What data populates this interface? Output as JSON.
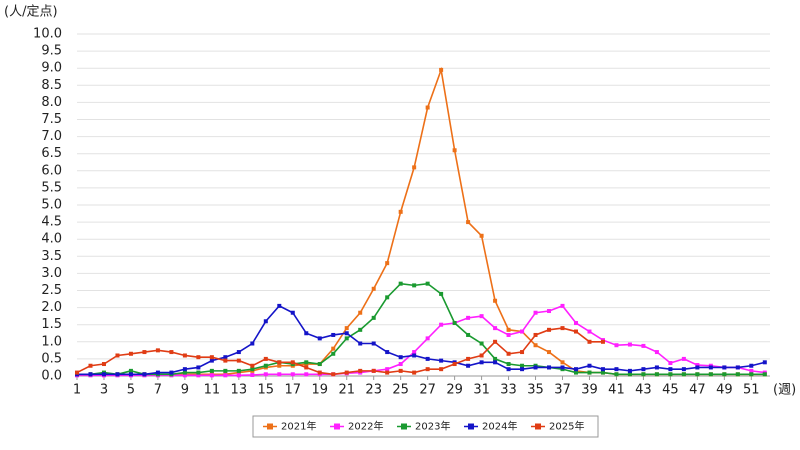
{
  "chart_data": {
    "type": "line",
    "y_label": "(人/定点)",
    "x_label": "(週)",
    "x": [
      1,
      2,
      3,
      4,
      5,
      6,
      7,
      8,
      9,
      10,
      11,
      12,
      13,
      14,
      15,
      16,
      17,
      18,
      19,
      20,
      21,
      22,
      23,
      24,
      25,
      26,
      27,
      28,
      29,
      30,
      31,
      32,
      33,
      34,
      35,
      36,
      37,
      38,
      39,
      40,
      41,
      42,
      43,
      44,
      45,
      46,
      47,
      48,
      49,
      50,
      51,
      52
    ],
    "xlim": [
      1,
      52
    ],
    "xticks": [
      1,
      3,
      5,
      7,
      9,
      11,
      13,
      15,
      17,
      19,
      21,
      23,
      25,
      27,
      29,
      31,
      33,
      35,
      37,
      39,
      41,
      43,
      45,
      47,
      49,
      51
    ],
    "ylim": [
      0,
      10
    ],
    "yticks": [
      {
        "value": 0,
        "label": "0.0"
      },
      0.5,
      {
        "value": 1,
        "label": "1.0"
      },
      1.5,
      {
        "value": 2,
        "label": "2.0"
      },
      2.5,
      {
        "value": 3,
        "label": "3.0"
      },
      3.5,
      {
        "value": 4,
        "label": "4.0"
      },
      4.5,
      {
        "value": 5,
        "label": "5.0"
      },
      5.5,
      {
        "value": 6,
        "label": "6.0"
      },
      6.5,
      {
        "value": 7,
        "label": "7.0"
      },
      7.5,
      {
        "value": 8,
        "label": "8.0"
      },
      8.5,
      {
        "value": 9,
        "label": "9.0"
      },
      9.5,
      {
        "value": 10,
        "label": "10.0"
      }
    ],
    "grid": true,
    "legend": "bottom",
    "series": [
      {
        "name": "2021年",
        "color": "#ed7018",
        "values": [
          0.05,
          0.05,
          0.05,
          0.05,
          0.05,
          0.05,
          0.05,
          0.05,
          0.05,
          0.05,
          0.05,
          0.05,
          0.1,
          0.15,
          0.25,
          0.3,
          0.3,
          0.35,
          0.35,
          0.8,
          1.4,
          1.85,
          2.55,
          3.3,
          4.8,
          6.1,
          7.85,
          8.95,
          6.6,
          4.5,
          4.1,
          2.2,
          1.35,
          1.3,
          0.9,
          0.7,
          0.4,
          0.15,
          0.1,
          0.1,
          0.05,
          0.05,
          0.05,
          0.05,
          0.05,
          0.05,
          0.05,
          0.05,
          0.05,
          0.05,
          0.05,
          0.05
        ]
      },
      {
        "name": "2022年",
        "color": "#ff20ff",
        "values": [
          0.02,
          0.02,
          0.02,
          0.02,
          0.02,
          0.02,
          0.02,
          0.02,
          0.02,
          0.02,
          0.02,
          0.02,
          0.02,
          0.03,
          0.05,
          0.05,
          0.05,
          0.05,
          0.05,
          0.05,
          0.08,
          0.1,
          0.15,
          0.2,
          0.35,
          0.7,
          1.1,
          1.5,
          1.55,
          1.7,
          1.75,
          1.4,
          1.2,
          1.3,
          1.85,
          1.9,
          2.05,
          1.55,
          1.3,
          1.05,
          0.9,
          0.92,
          0.88,
          0.7,
          0.38,
          0.5,
          0.32,
          0.3,
          0.25,
          0.25,
          0.15,
          0.1
        ]
      },
      {
        "name": "2023年",
        "color": "#1a9a30",
        "values": [
          0.05,
          0.05,
          0.1,
          0.05,
          0.15,
          0.05,
          0.05,
          0.05,
          0.1,
          0.1,
          0.15,
          0.15,
          0.15,
          0.2,
          0.3,
          0.4,
          0.35,
          0.4,
          0.35,
          0.65,
          1.1,
          1.35,
          1.7,
          2.3,
          2.7,
          2.65,
          2.7,
          2.4,
          1.55,
          1.2,
          0.95,
          0.5,
          0.35,
          0.3,
          0.3,
          0.25,
          0.2,
          0.1,
          0.1,
          0.1,
          0.05,
          0.05,
          0.05,
          0.05,
          0.05,
          0.05,
          0.05,
          0.05,
          0.05,
          0.05,
          0.05,
          0.05
        ]
      },
      {
        "name": "2024年",
        "color": "#1414c8",
        "values": [
          0.05,
          0.05,
          0.05,
          0.05,
          0.05,
          0.05,
          0.1,
          0.1,
          0.2,
          0.25,
          0.45,
          0.55,
          0.7,
          0.95,
          1.6,
          2.05,
          1.85,
          1.25,
          1.1,
          1.2,
          1.25,
          0.95,
          0.95,
          0.7,
          0.55,
          0.6,
          0.5,
          0.45,
          0.4,
          0.3,
          0.4,
          0.4,
          0.2,
          0.2,
          0.25,
          0.25,
          0.25,
          0.2,
          0.3,
          0.2,
          0.2,
          0.15,
          0.2,
          0.25,
          0.2,
          0.2,
          0.25,
          0.25,
          0.25,
          0.25,
          0.3,
          0.4
        ]
      },
      {
        "name": "2025年",
        "color": "#e03c14",
        "values": [
          0.1,
          0.3,
          0.35,
          0.6,
          0.65,
          0.7,
          0.75,
          0.7,
          0.6,
          0.55,
          0.55,
          0.45,
          0.45,
          0.3,
          0.5,
          0.4,
          0.4,
          0.25,
          0.1,
          0.05,
          0.1,
          0.15,
          0.15,
          0.1,
          0.15,
          0.1,
          0.2,
          0.2,
          0.35,
          0.5,
          0.6,
          1.0,
          0.65,
          0.7,
          1.2,
          1.35,
          1.4,
          1.3,
          1.0,
          1.0,
          null,
          null,
          null,
          null,
          null,
          null,
          null,
          null,
          null,
          null,
          null,
          null
        ]
      }
    ]
  }
}
